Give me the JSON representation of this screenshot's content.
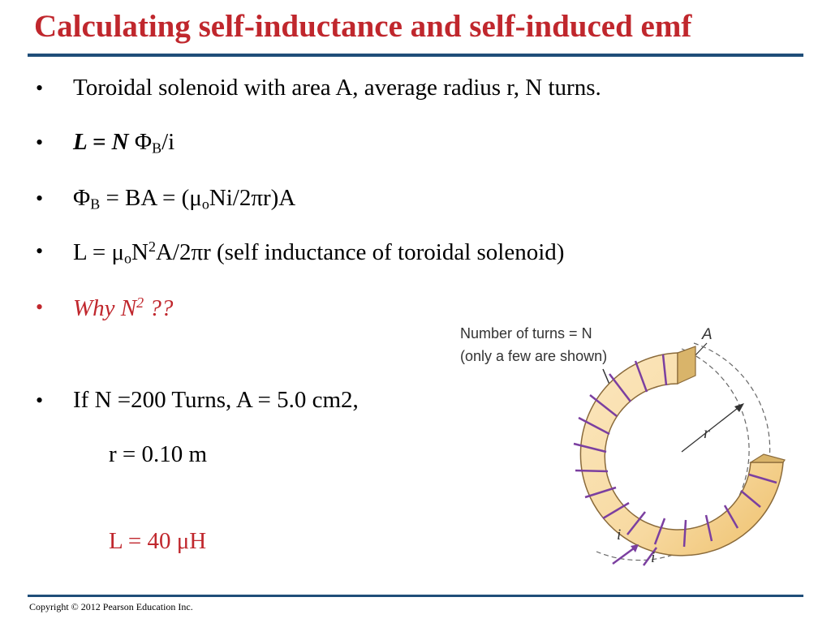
{
  "title": "Calculating self-inductance and self-induced emf",
  "bullets": {
    "b1": "Toroidal solenoid with area A, average radius r, N turns.",
    "b2": {
      "lhs": "L = N",
      "phi": "Φ",
      "sub": "B",
      "tail": "/i"
    },
    "b3": {
      "phi": "Φ",
      "sub": "B",
      "mid": " = BA = (μ",
      "sub2": "o",
      "tail": "Ni/2πr)A"
    },
    "b4": {
      "a": "L = μ",
      "sub": "o",
      "b": "N",
      "sup": "2",
      "c": "A/2πr  (self inductance of toroidal solenoid)"
    },
    "b5": {
      "a": "Why N",
      "sup": "2",
      "b": " ??"
    },
    "b6": "If N =200 Turns, A = 5.0 cm2,",
    "b6_cont": "r = 0.10 m",
    "result": "L = 40 μH"
  },
  "figure": {
    "caption_line1": "Number of turns  =  N",
    "caption_line2": "(only a few are shown)",
    "label_A": "A",
    "label_r": "r",
    "label_i1": "i",
    "label_i2": "i"
  },
  "footer": "Copyright © 2012 Pearson Education Inc.",
  "colors": {
    "title": "#c0272d",
    "rule": "#1f4e79",
    "coil": "#7b3fa0",
    "torus": "#f7d9a0"
  }
}
